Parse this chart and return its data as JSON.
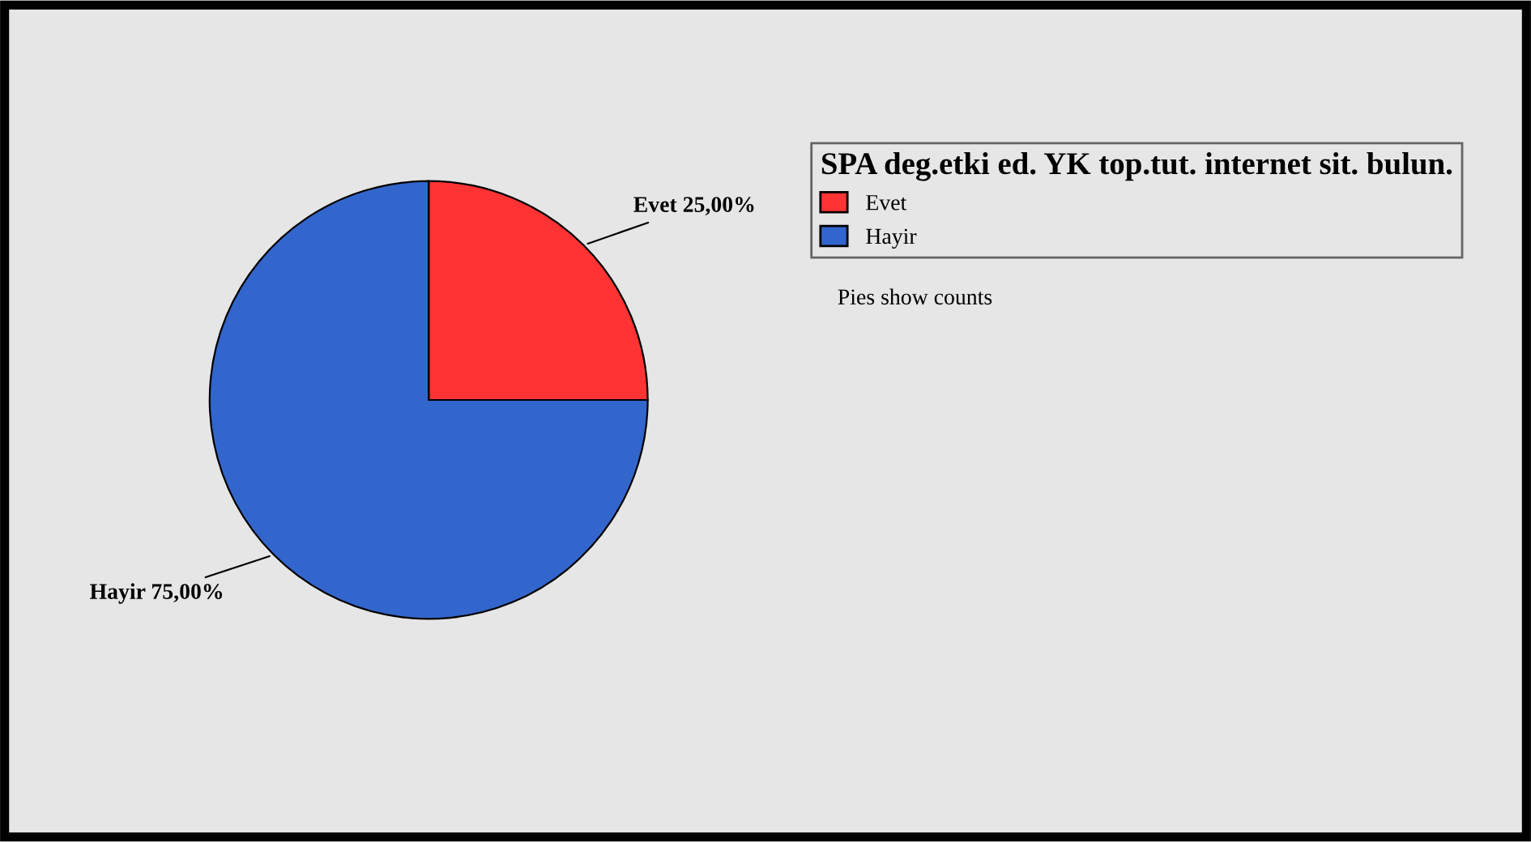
{
  "chart_data": {
    "type": "pie",
    "legend_title": "SPA deg.etki ed. YK top.tut. internet sit. bulun.",
    "categories": [
      "Evet",
      "Hayir"
    ],
    "values": [
      25,
      75
    ],
    "colors": [
      "#ff3333",
      "#3366cc"
    ],
    "value_labels": [
      "25,00%",
      "75,00%"
    ],
    "legend": "top right",
    "annotations": [
      "Pies show counts"
    ]
  }
}
